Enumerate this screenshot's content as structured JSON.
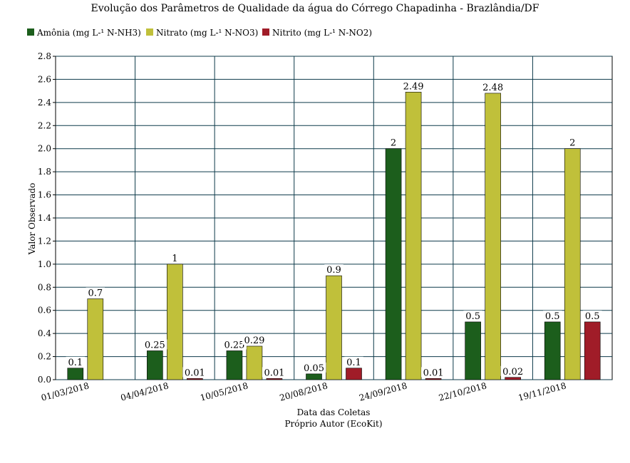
{
  "chart_data": {
    "type": "bar",
    "title": "Evolução dos Parâmetros de Qualidade da água do Córrego Chapadinha - Brazlândia/DF",
    "xlabel": "Data das Coletas",
    "subtitle": "Próprio Autor (EcoKit)",
    "ylabel": "Valor Observado",
    "ylim": [
      0,
      2.8
    ],
    "ytick_step": 0.2,
    "yticks": [
      "0.0",
      "0.2",
      "0.4",
      "0.6",
      "0.8",
      "1.0",
      "1.2",
      "1.4",
      "1.6",
      "1.8",
      "2.0",
      "2.2",
      "2.4",
      "2.6",
      "2.8"
    ],
    "grid": true,
    "legend_position": "top-left",
    "categories": [
      "01/03/2018",
      "04/04/2018",
      "10/05/2018",
      "20/08/2018",
      "24/09/2018",
      "22/10/2018",
      "19/11/2018"
    ],
    "series": [
      {
        "name": "Amônia (mg L-¹ N-NH3)",
        "color": "#1c5e1c",
        "values": [
          0.1,
          0.25,
          0.25,
          0.05,
          2,
          0.5,
          0.5
        ],
        "labels": [
          "0.1",
          "0.25",
          "0.25",
          "0.05",
          "2",
          "0.5",
          "0.5"
        ]
      },
      {
        "name": "Nitrato (mg L-¹ N-NO3)",
        "color": "#c0c03a",
        "values": [
          0.7,
          1,
          0.29,
          0.9,
          2.49,
          2.48,
          2
        ],
        "labels": [
          "0.7",
          "1",
          "0.29",
          "0.9",
          "2.49",
          "2.48",
          "2"
        ]
      },
      {
        "name": "Nitrito (mg L-¹ N-NO2)",
        "color": "#a01c28",
        "values": [
          null,
          0.01,
          0.01,
          0.1,
          0.01,
          0.02,
          0.5
        ],
        "labels": [
          "",
          "0.01",
          "0.01",
          "0.1",
          "0.01",
          "0.02",
          "0.5"
        ]
      }
    ]
  }
}
